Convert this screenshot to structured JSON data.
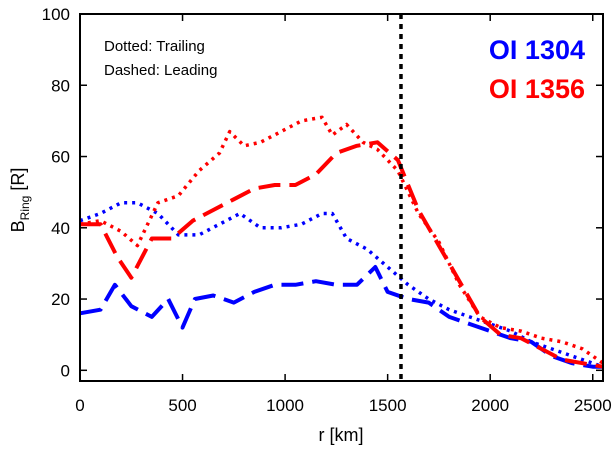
{
  "chart_data": {
    "type": "line",
    "xlabel": "r [km]",
    "ylabel": {
      "main": "B",
      "subscript": "Ring",
      "unit": " [R]"
    },
    "xlim": [
      0,
      2550
    ],
    "ylim": [
      -3,
      100
    ],
    "xticks": [
      0,
      500,
      1000,
      1500,
      2000,
      2500
    ],
    "yticks": [
      0,
      20,
      40,
      60,
      80,
      100
    ],
    "grid": false,
    "legend_position": "top-right",
    "annotations": [
      "Dotted: Trailing",
      "Dashed: Leading"
    ],
    "vertical_line": {
      "x": 1565,
      "style": "dotted",
      "color": "#000000"
    },
    "series": [
      {
        "name": "OI 1304",
        "color": "#0000ff",
        "style": "dotted",
        "role": "trailing",
        "x": [
          0,
          100,
          200,
          280,
          380,
          480,
          580,
          680,
          780,
          880,
          980,
          1080,
          1180,
          1230,
          1300,
          1400,
          1500,
          1600,
          1700,
          1800,
          1900,
          2000,
          2100,
          2200,
          2300,
          2400,
          2500,
          2550
        ],
        "y": [
          42,
          44,
          47,
          47,
          44,
          38,
          38,
          41,
          44,
          40,
          40,
          41,
          44,
          44,
          37,
          34,
          29,
          24,
          20,
          17,
          15,
          13,
          11,
          8,
          6,
          4,
          2,
          1
        ]
      },
      {
        "name": "OI 1304",
        "color": "#0000ff",
        "style": "dashed",
        "role": "leading",
        "x": [
          0,
          100,
          170,
          250,
          350,
          430,
          500,
          560,
          650,
          750,
          850,
          950,
          1050,
          1150,
          1250,
          1350,
          1440,
          1500,
          1600,
          1700,
          1800,
          1900,
          2000,
          2100,
          2200,
          2300,
          2400,
          2500,
          2550
        ],
        "y": [
          16,
          17,
          24,
          18,
          15,
          20,
          12,
          20,
          21,
          19,
          22,
          24,
          24,
          25,
          24,
          24,
          29,
          22,
          20,
          19,
          15,
          13,
          11,
          9,
          8,
          4,
          2,
          1,
          1
        ]
      },
      {
        "name": "OI 1356",
        "color": "#ff0000",
        "style": "dotted",
        "role": "trailing",
        "x": [
          0,
          100,
          200,
          280,
          380,
          480,
          580,
          680,
          730,
          800,
          880,
          980,
          1080,
          1180,
          1230,
          1300,
          1380,
          1450,
          1550,
          1650,
          1750,
          1850,
          1950,
          2050,
          2150,
          2250,
          2350,
          2450,
          2550
        ],
        "y": [
          41,
          42,
          39,
          35,
          47,
          49,
          56,
          61,
          67,
          63,
          64,
          67,
          70,
          71,
          66,
          69,
          64,
          62,
          56,
          44,
          36,
          24,
          15,
          12,
          11,
          9,
          8,
          6,
          2
        ]
      },
      {
        "name": "OI 1356",
        "color": "#ff0000",
        "style": "dashed",
        "role": "leading",
        "x": [
          0,
          100,
          180,
          250,
          350,
          450,
          550,
          650,
          750,
          850,
          950,
          1050,
          1150,
          1250,
          1350,
          1450,
          1550,
          1650,
          1750,
          1850,
          1950,
          2050,
          2150,
          2250,
          2350,
          2450,
          2550
        ],
        "y": [
          41,
          41,
          32,
          26,
          37,
          37,
          42,
          45,
          48,
          51,
          52,
          52,
          55,
          61,
          63,
          64,
          59,
          45,
          35,
          25,
          15,
          10,
          9,
          6,
          3,
          2,
          1
        ]
      }
    ],
    "legend": [
      {
        "label": "OI 1304",
        "color": "#0000ff"
      },
      {
        "label": "OI 1356",
        "color": "#ff0000"
      }
    ]
  }
}
